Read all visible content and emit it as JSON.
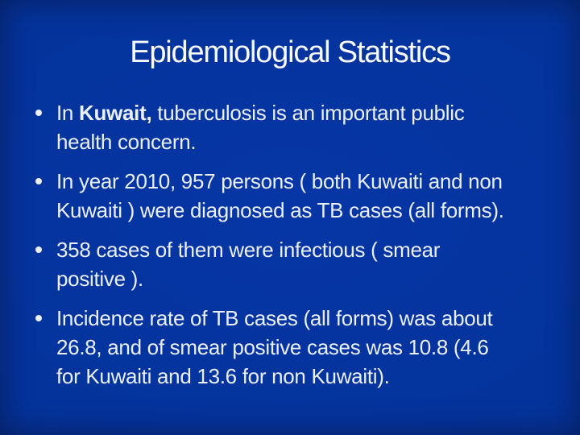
{
  "slide": {
    "title": "Epidemiological Statistics",
    "bullet_glyph": "•",
    "bullets": [
      {
        "segments": [
          {
            "text": "In ",
            "bold": false
          },
          {
            "text": "Kuwait,",
            "bold": true
          },
          {
            "text": " tuberculosis is an important public\nhealth concern.",
            "bold": false
          }
        ]
      },
      {
        "segments": [
          {
            "text": "In year 2010, 957 persons ( both Kuwaiti and non\nKuwaiti ) were diagnosed as TB cases (all forms).",
            "bold": false
          }
        ]
      },
      {
        "segments": [
          {
            "text": "358 cases of them were infectious ( smear\npositive ).",
            "bold": false
          }
        ]
      },
      {
        "segments": [
          {
            "text": "Incidence rate of TB cases (all forms) was about\n26.8, and of smear positive cases was 10.8 (4.6\nfor Kuwaiti and 13.6 for non Kuwaiti).",
            "bold": false
          }
        ]
      }
    ],
    "colors": {
      "background": "#04339B",
      "background_center": "#0636A6",
      "background_edge": "#0B2A70",
      "title_text": "#F7F9FC",
      "body_text": "#EAEFF8"
    }
  }
}
